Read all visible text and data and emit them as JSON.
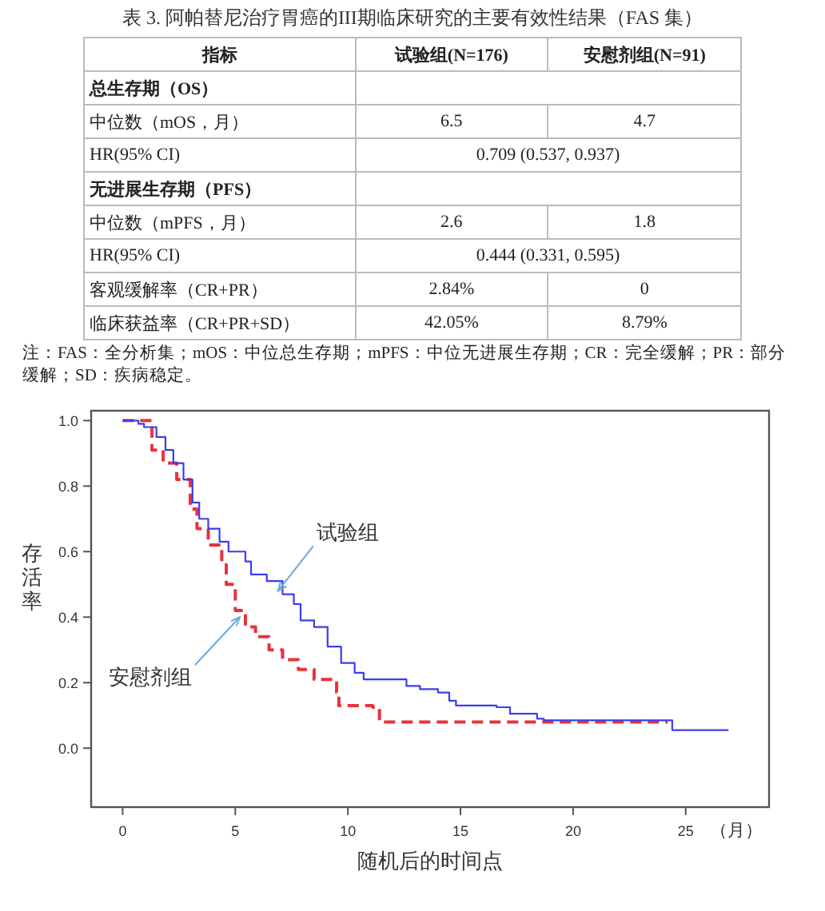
{
  "chart_data": [
    {
      "type": "other",
      "title": "表 3. 阿帕替尼治疗胃癌的III期临床研究的主要有效性结果（FAS 集）",
      "categories": [
        "指标",
        "试验组(N=176)",
        "安慰剂组(N=91)"
      ],
      "y_categories": [
        "总生存期（OS）",
        "中位数（mOS，月）",
        "HR(95% CI)",
        "无进展生存期（PFS）",
        "中位数（mPFS，月）",
        "HR(95% CI)",
        "客观缓解率（CR+PR）",
        "临床获益率（CR+PR+SD）"
      ],
      "cell_labels": [
        [
          null,
          null
        ],
        [
          "6.5",
          "4.7"
        ],
        [
          "0.709 (0.537, 0.937)",
          null
        ],
        [
          null,
          null
        ],
        [
          "2.6",
          "1.8"
        ],
        [
          "0.444 (0.331, 0.595)",
          null
        ],
        [
          "2.84%",
          "0"
        ],
        [
          "42.05%",
          "8.79%"
        ]
      ],
      "annotations": [
        "注：FAS：全分析集；mOS：中位总生存期；mPFS：中位无进展生存期；CR：完全缓解；PR：部分缓解；SD：疾病稳定。"
      ]
    },
    {
      "type": "step",
      "xlabel": "随机后的时间点",
      "ylabel": "存活率",
      "xlim": [
        -1.4,
        28.7
      ],
      "ylim": [
        -0.18,
        1.03
      ],
      "xticks": [
        0,
        5,
        10,
        15,
        20,
        25
      ],
      "yticks": [
        {
          "value": 0,
          "label": "0.0"
        },
        {
          "value": 0.2,
          "label": "0.2"
        },
        {
          "value": 0.4,
          "label": "0.4"
        },
        {
          "value": 0.6,
          "label": "0.6"
        },
        {
          "value": 0.8,
          "label": "0.8"
        },
        {
          "value": 1,
          "label": "1.0"
        }
      ],
      "grid": false,
      "series": [
        {
          "color": "#3c3cf0",
          "line_style": "solid",
          "x": [
            0,
            0.7,
            0.95,
            1.2,
            1.5,
            1.9,
            2.25,
            2.7,
            3.1,
            3.4,
            3.8,
            4.3,
            4.7,
            5.45,
            5.7,
            6.4,
            7.1,
            7.6,
            7.9,
            8.5,
            9.1,
            9.7,
            10.3,
            10.7,
            11.6,
            12.6,
            13.2,
            14.0,
            14.5,
            14.8,
            16.6,
            17.2,
            18.4,
            18.7,
            24.3,
            24.4,
            26.9
          ],
          "values": [
            1,
            0.99,
            0.98,
            0.98,
            0.95,
            0.91,
            0.87,
            0.82,
            0.75,
            0.7,
            0.67,
            0.63,
            0.6,
            0.57,
            0.53,
            0.51,
            0.47,
            0.44,
            0.39,
            0.37,
            0.31,
            0.26,
            0.23,
            0.21,
            0.21,
            0.19,
            0.18,
            0.17,
            0.145,
            0.13,
            0.125,
            0.105,
            0.09,
            0.085,
            0.085,
            0.055,
            0.055
          ]
        },
        {
          "color": "#e8323c",
          "line_style": "dashed",
          "x": [
            0,
            1.3,
            1.8,
            2.4,
            3.0,
            3.3,
            3.8,
            4.4,
            4.6,
            5.0,
            5.45,
            5.9,
            6.5,
            7.1,
            7.8,
            8.5,
            9.5,
            9.6,
            11.1,
            11.4,
            24.2
          ],
          "values": [
            1,
            0.91,
            0.87,
            0.82,
            0.73,
            0.67,
            0.62,
            0.56,
            0.5,
            0.42,
            0.37,
            0.34,
            0.3,
            0.27,
            0.24,
            0.21,
            0.17,
            0.13,
            0.125,
            0.08,
            0.08
          ]
        }
      ],
      "annotations": [
        {
          "text": "试验组",
          "x": 6.9,
          "y": 0.48
        },
        {
          "text": "安慰剂组",
          "x": 5.2,
          "y": 0.4
        },
        "（月）"
      ]
    }
  ]
}
